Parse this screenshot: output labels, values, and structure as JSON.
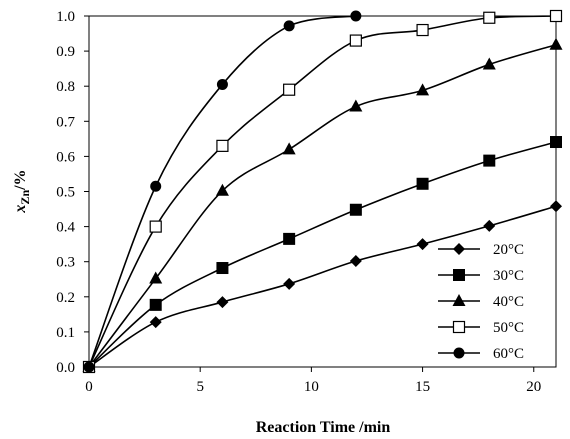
{
  "chart_data": {
    "type": "line",
    "xlabel": "Reaction Time /min",
    "ylabel": {
      "main": "x",
      "sub": "Zn",
      "unit": "/%"
    },
    "xlim": [
      0,
      21
    ],
    "ylim": [
      0,
      1.0
    ],
    "x_ticks": [
      0,
      5,
      10,
      15,
      20
    ],
    "y_ticks": [
      0.0,
      0.1,
      0.2,
      0.3,
      0.4,
      0.5,
      0.6,
      0.7,
      0.8,
      0.9,
      1.0
    ],
    "x_tick_labels": [
      "0",
      "5",
      "10",
      "15",
      "20"
    ],
    "y_tick_labels": [
      "0.0",
      "0.1",
      "0.2",
      "0.3",
      "0.4",
      "0.5",
      "0.6",
      "0.7",
      "0.8",
      "0.9",
      "1.0"
    ],
    "grid": false,
    "legend_position": "bottom-right",
    "series": [
      {
        "name": "20°C",
        "marker": "diamond",
        "x": [
          0,
          3,
          6,
          9,
          12,
          15,
          18,
          21
        ],
        "y": [
          0,
          0.128,
          0.185,
          0.237,
          0.302,
          0.35,
          0.402,
          0.458
        ]
      },
      {
        "name": "30°C",
        "marker": "square",
        "x": [
          0,
          3,
          6,
          9,
          12,
          15,
          18,
          21
        ],
        "y": [
          0,
          0.177,
          0.282,
          0.365,
          0.448,
          0.522,
          0.588,
          0.641
        ]
      },
      {
        "name": "40°C",
        "marker": "triangle",
        "x": [
          0,
          3,
          6,
          9,
          12,
          15,
          18,
          21
        ],
        "y": [
          0,
          0.252,
          0.502,
          0.62,
          0.742,
          0.788,
          0.862,
          0.918
        ]
      },
      {
        "name": "50°C",
        "marker": "open-square",
        "x": [
          0,
          3,
          6,
          9,
          12,
          15,
          18,
          21
        ],
        "y": [
          0,
          0.4,
          0.63,
          0.79,
          0.93,
          0.96,
          0.995,
          1.0
        ]
      },
      {
        "name": "60°C",
        "marker": "circle",
        "x": [
          0,
          3,
          6,
          9,
          12
        ],
        "y": [
          0,
          0.515,
          0.805,
          0.972,
          1.0
        ]
      }
    ]
  }
}
